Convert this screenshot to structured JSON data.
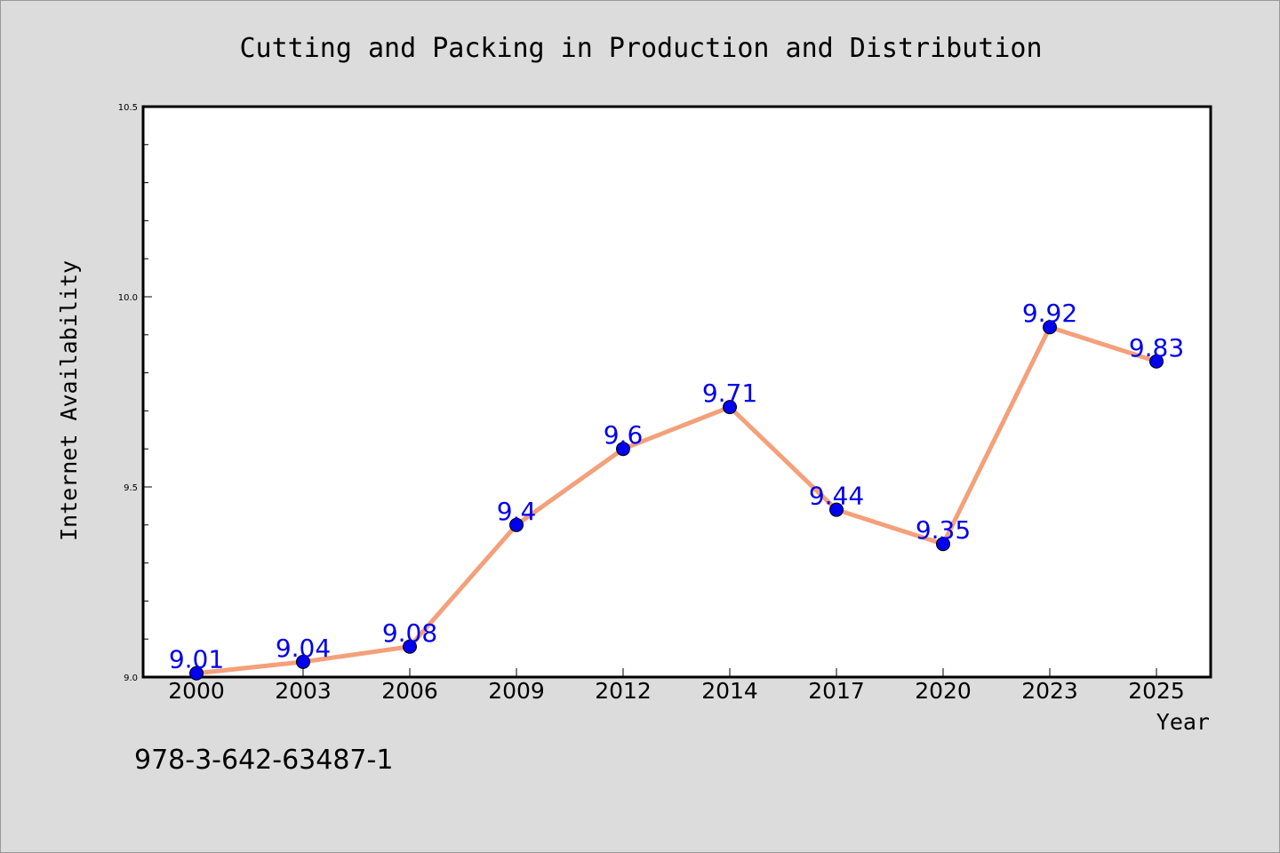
{
  "chart_data": {
    "type": "line",
    "title": "Cutting and Packing in Production and Distribution",
    "xlabel": "Year",
    "ylabel": "Internet Availability",
    "categories": [
      "2000",
      "2003",
      "2006",
      "2009",
      "2012",
      "2014",
      "2017",
      "2020",
      "2023",
      "2025"
    ],
    "series": [
      {
        "values": [
          9.01,
          9.04,
          9.08,
          9.4,
          9.6,
          9.71,
          9.44,
          9.35,
          9.92,
          9.83
        ],
        "labels": [
          "9.01",
          "9.04",
          "9.08",
          "9.4",
          "9.6",
          "9.71",
          "9.44",
          "9.35",
          "9.92",
          "9.83"
        ]
      }
    ],
    "ylim": [
      9.0,
      10.5
    ],
    "yticks": [
      9.0,
      9.5,
      10.0,
      10.5
    ],
    "ytick_labels": [
      "9.0",
      "9.5",
      "10.0",
      "10.5"
    ],
    "grid": false,
    "line_color": "#f4a07a",
    "marker_color": "#0000ee",
    "label_color": "#0000ee",
    "background_color": "#dcdcdc",
    "plot_background_color": "#ffffff"
  },
  "annotation": "978-3-642-63487-1"
}
